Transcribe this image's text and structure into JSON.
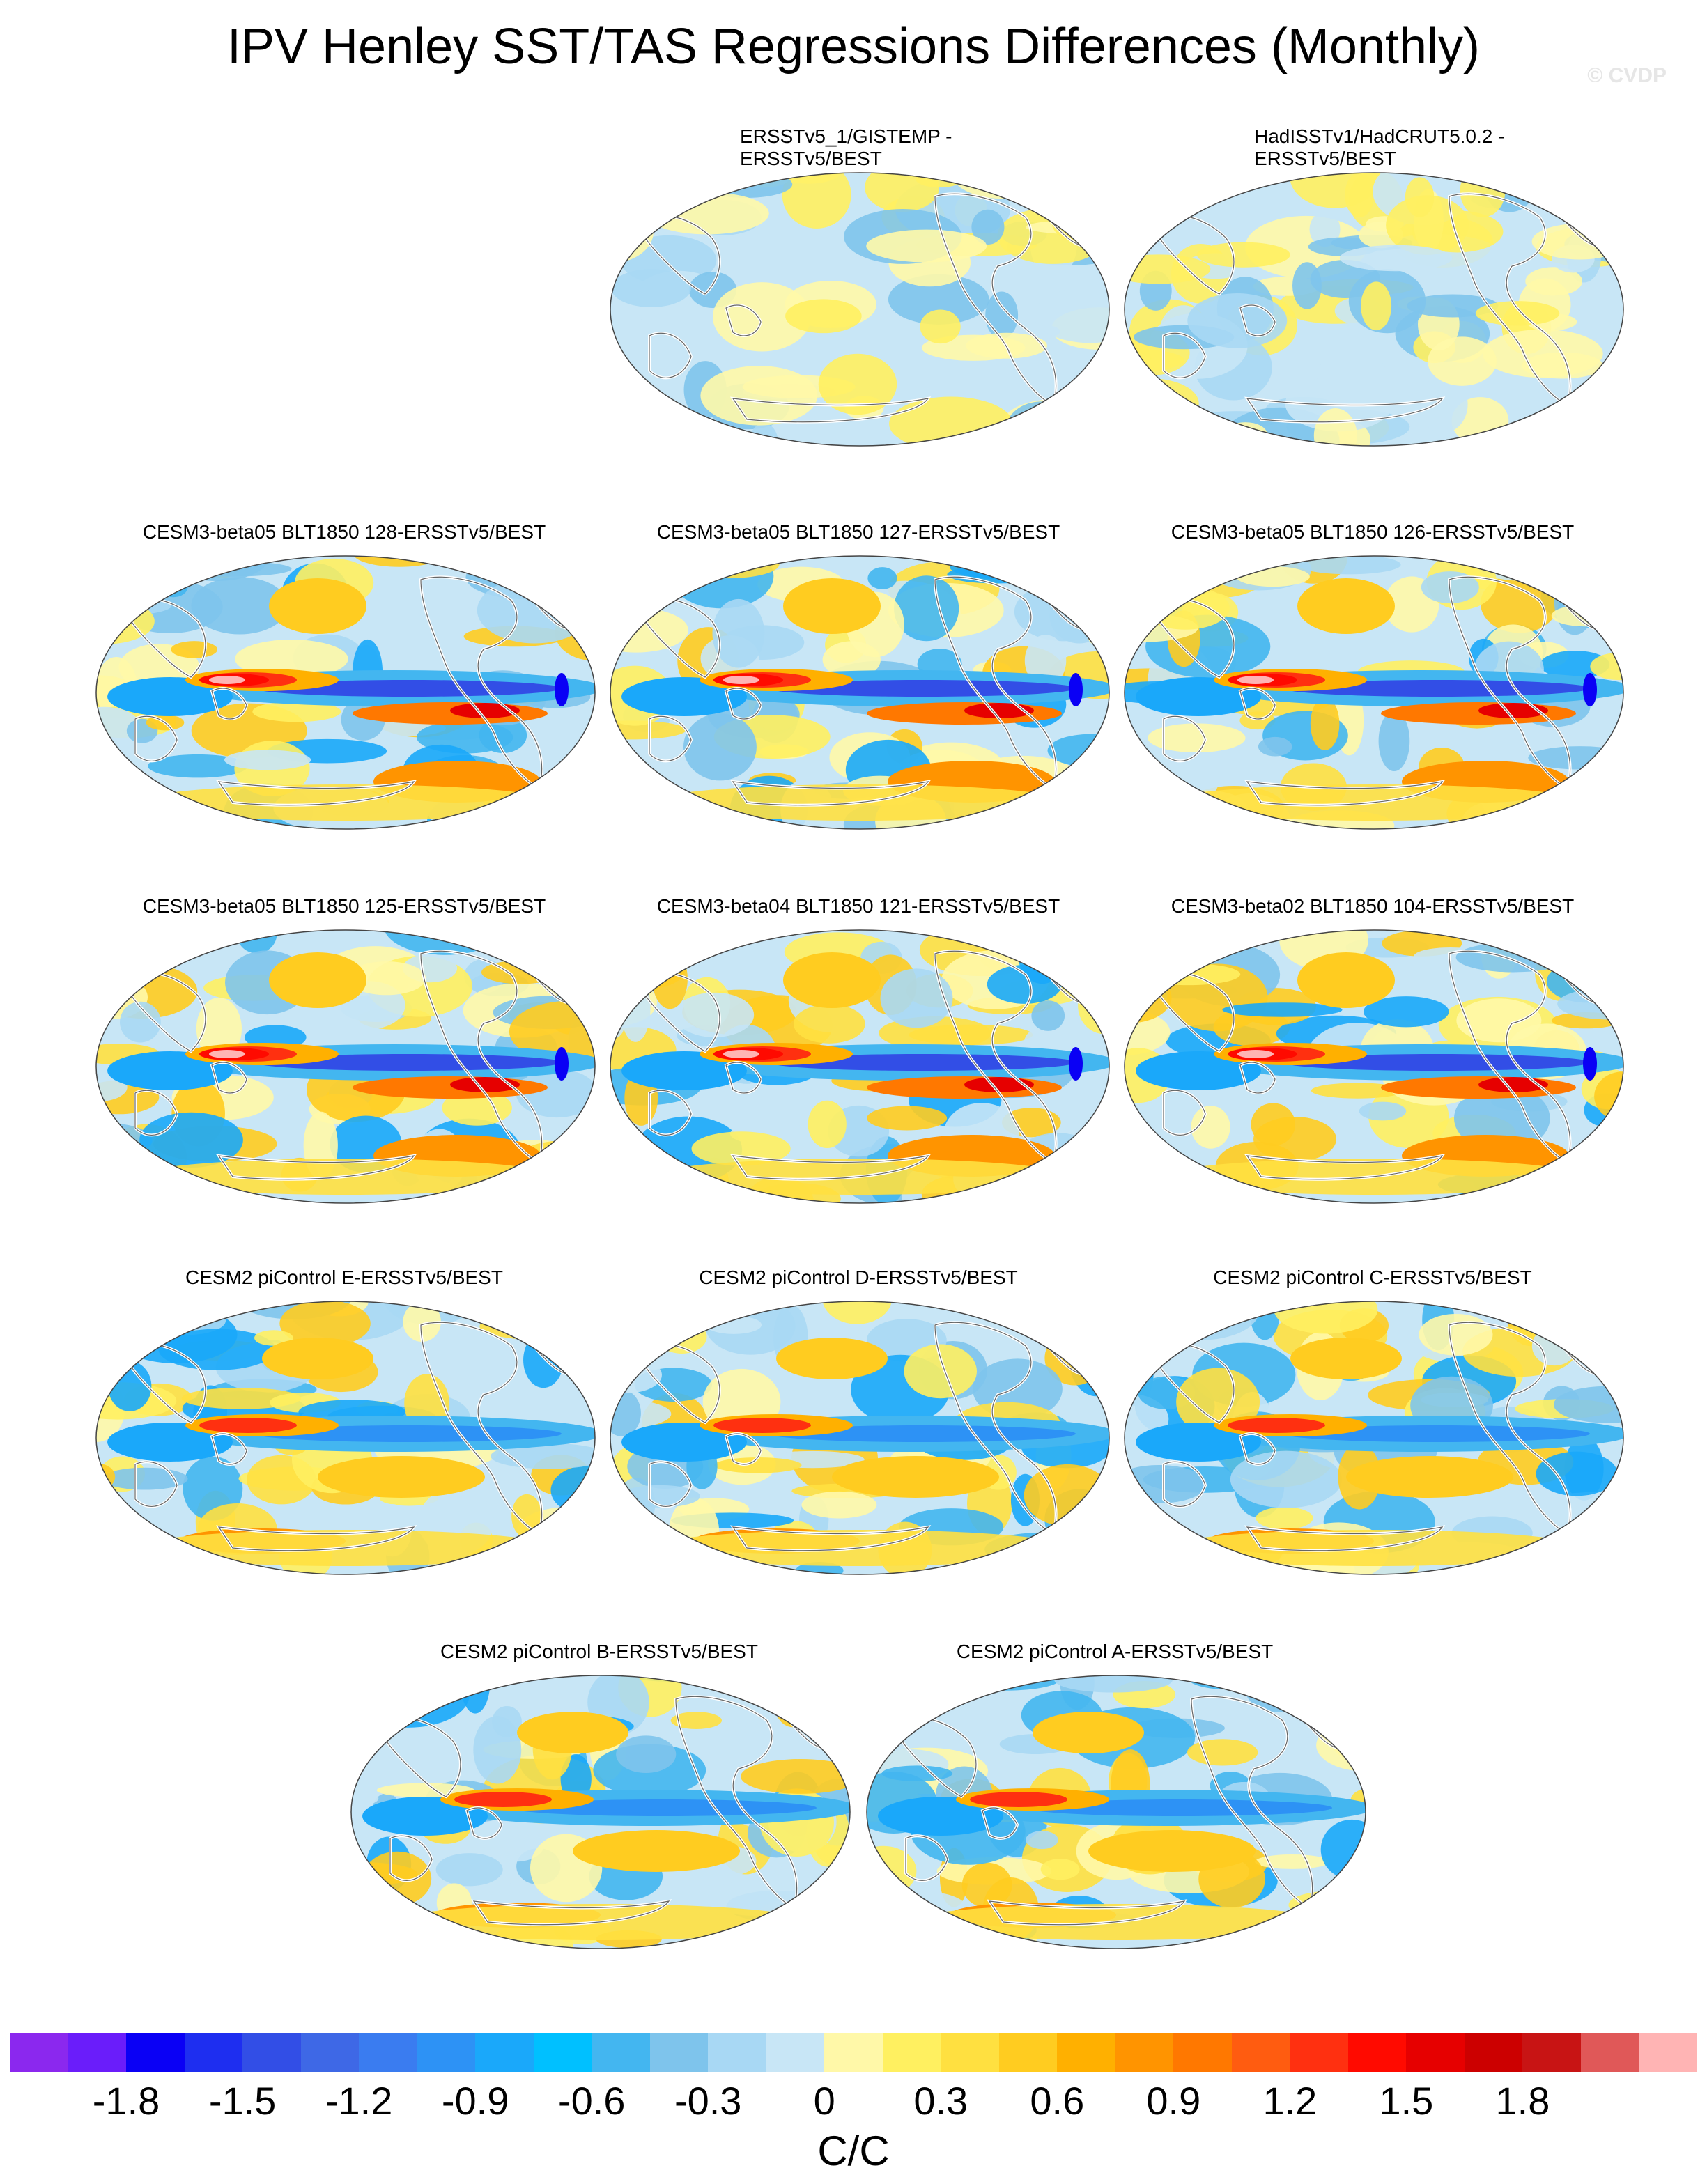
{
  "title": "IPV Henley SST/TAS Regressions Differences (Monthly)",
  "watermark": "© CVDP",
  "panels": [
    {
      "title_lines": [
        "ERSSTv5_1/GISTEMP -",
        "ERSSTv5/BEST"
      ],
      "pattern": "obs1"
    },
    {
      "title_lines": [
        "HadISSTv1/HadCRUT5.0.2 -",
        "ERSSTv5/BEST"
      ],
      "pattern": "obs2"
    },
    {
      "title": "CESM3-beta05 BLT1850 128-ERSSTv5/BEST",
      "pattern": "strong"
    },
    {
      "title": "CESM3-beta05 BLT1850 127-ERSSTv5/BEST",
      "pattern": "strong"
    },
    {
      "title": "CESM3-beta05 BLT1850 126-ERSSTv5/BEST",
      "pattern": "strong"
    },
    {
      "title": "CESM3-beta05 BLT1850 125-ERSSTv5/BEST",
      "pattern": "strong"
    },
    {
      "title": "CESM3-beta04 BLT1850 121-ERSSTv5/BEST",
      "pattern": "strong"
    },
    {
      "title": "CESM3-beta02 BLT1850 104-ERSSTv5/BEST",
      "pattern": "strong"
    },
    {
      "title": "CESM2 piControl E-ERSSTv5/BEST",
      "pattern": "moderate"
    },
    {
      "title": "CESM2 piControl D-ERSSTv5/BEST",
      "pattern": "moderate"
    },
    {
      "title": "CESM2 piControl C-ERSSTv5/BEST",
      "pattern": "moderate"
    },
    {
      "title": "CESM2 piControl B-ERSSTv5/BEST",
      "pattern": "moderate"
    },
    {
      "title": "CESM2 piControl A-ERSSTv5/BEST",
      "pattern": "moderate"
    }
  ],
  "colorbar": {
    "colors": [
      "#8b28ee",
      "#6a1dfa",
      "#0a00f5",
      "#1e2ef0",
      "#324ee6",
      "#3e68e6",
      "#3a7cf0",
      "#2d92f5",
      "#1aa8fa",
      "#00c0ff",
      "#43b6f0",
      "#7ec4ec",
      "#a8d8f4",
      "#c8e6f6",
      "#fff8a8",
      "#fff060",
      "#ffe040",
      "#ffcc20",
      "#ffb000",
      "#ff9400",
      "#ff7800",
      "#ff5c10",
      "#ff3010",
      "#ff0a00",
      "#e60000",
      "#cc0000",
      "#c81414",
      "#e05858",
      "#ffb4b4"
    ],
    "tick_labels": [
      "-1.8",
      "-1.5",
      "-1.2",
      "-0.9",
      "-0.6",
      "-0.3",
      "0",
      "0.3",
      "0.6",
      "0.9",
      "1.2",
      "1.5",
      "1.8"
    ],
    "units": "C/C"
  }
}
